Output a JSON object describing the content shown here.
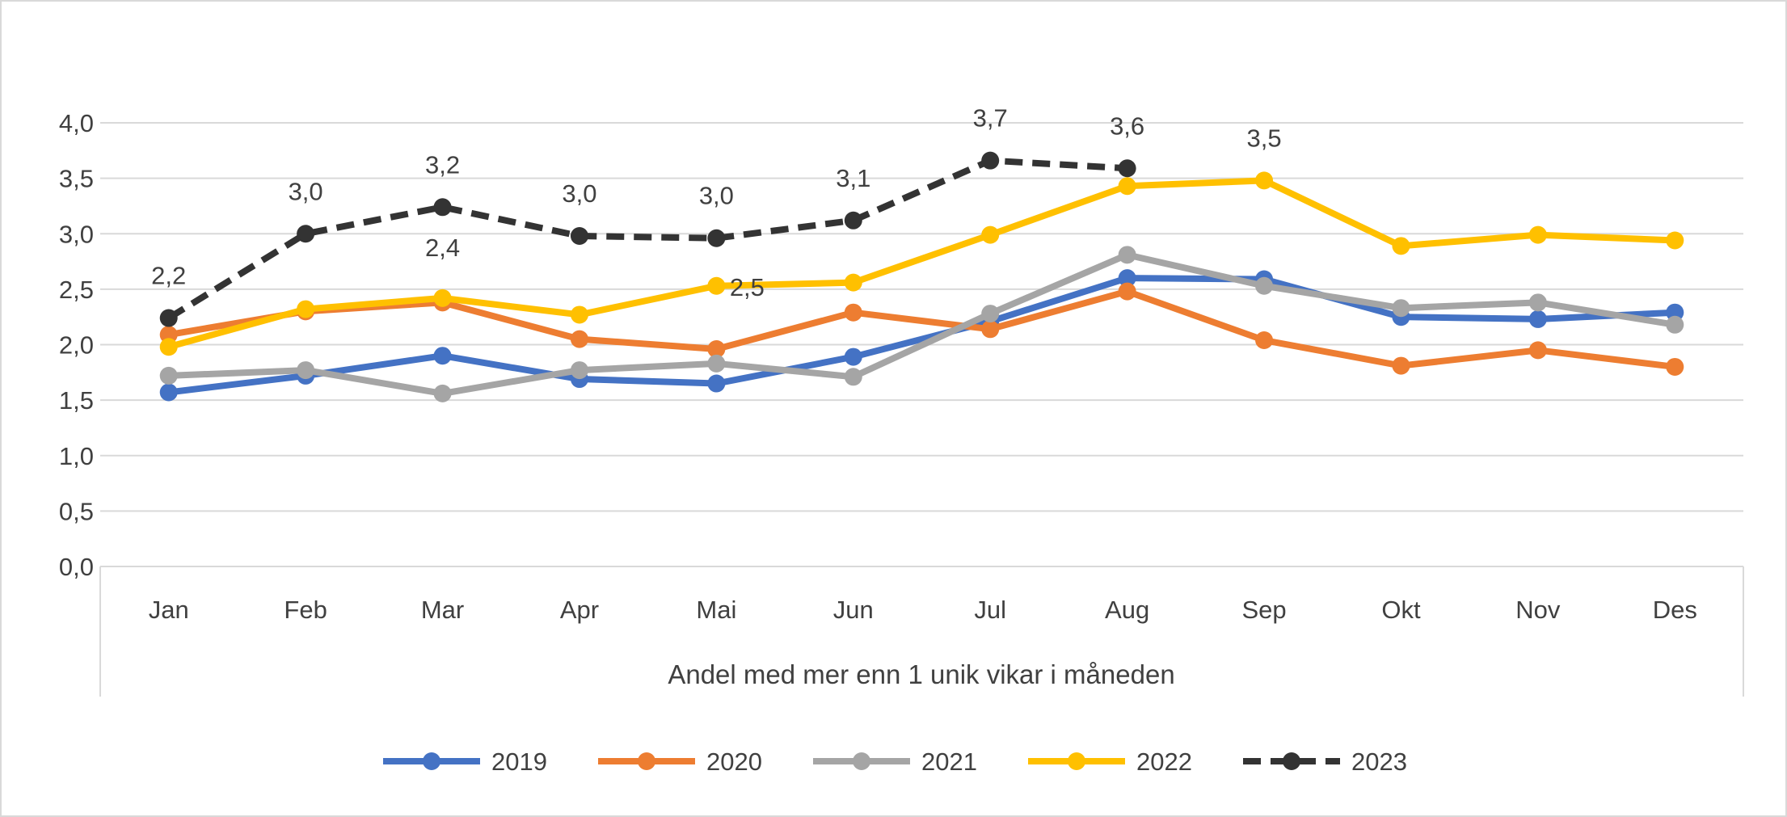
{
  "chart_data": {
    "type": "line",
    "title": "",
    "xlabel": "Andel med mer enn 1 unik vikar i måneden",
    "ylabel": "",
    "ylim": [
      0,
      4
    ],
    "yticks": [
      "0,0",
      "0,5",
      "1,0",
      "1,5",
      "2,0",
      "2,5",
      "3,0",
      "3,5",
      "4,0"
    ],
    "grid": true,
    "legend": "bottom",
    "categories": [
      "Jan",
      "Feb",
      "Mar",
      "Apr",
      "Mai",
      "Jun",
      "Jul",
      "Aug",
      "Sep",
      "Okt",
      "Nov",
      "Des"
    ],
    "series": [
      {
        "name": "2019",
        "color": "#4472C4",
        "dashed": false,
        "values": [
          1.57,
          1.72,
          1.9,
          1.69,
          1.65,
          1.89,
          2.21,
          2.6,
          2.59,
          2.25,
          2.23,
          2.29
        ]
      },
      {
        "name": "2020",
        "color": "#ED7D31",
        "dashed": false,
        "values": [
          2.09,
          2.3,
          2.38,
          2.05,
          1.96,
          2.29,
          2.14,
          2.48,
          2.04,
          1.81,
          1.95,
          1.8
        ]
      },
      {
        "name": "2021",
        "color": "#A5A5A5",
        "dashed": false,
        "values": [
          1.72,
          1.77,
          1.56,
          1.77,
          1.83,
          1.71,
          2.28,
          2.81,
          2.53,
          2.33,
          2.38,
          2.18
        ]
      },
      {
        "name": "2022",
        "color": "#FFC000",
        "dashed": false,
        "values": [
          1.98,
          2.32,
          2.42,
          2.27,
          2.53,
          2.56,
          2.99,
          3.43,
          3.48,
          2.89,
          2.99,
          2.94
        ],
        "data_labels": [
          null,
          null,
          "2,4",
          null,
          "2,5",
          null,
          null,
          null,
          "3,5",
          null,
          null,
          null
        ]
      },
      {
        "name": "2023",
        "color": "#333333",
        "dashed": true,
        "values": [
          2.24,
          3.0,
          3.24,
          2.98,
          2.96,
          3.12,
          3.66,
          3.59,
          null,
          null,
          null,
          null
        ],
        "data_labels": [
          "2,2",
          "3,0",
          "3,2",
          "3,0",
          "3,0",
          "3,1",
          "3,7",
          "3,6",
          null,
          null,
          null,
          null
        ]
      }
    ]
  }
}
